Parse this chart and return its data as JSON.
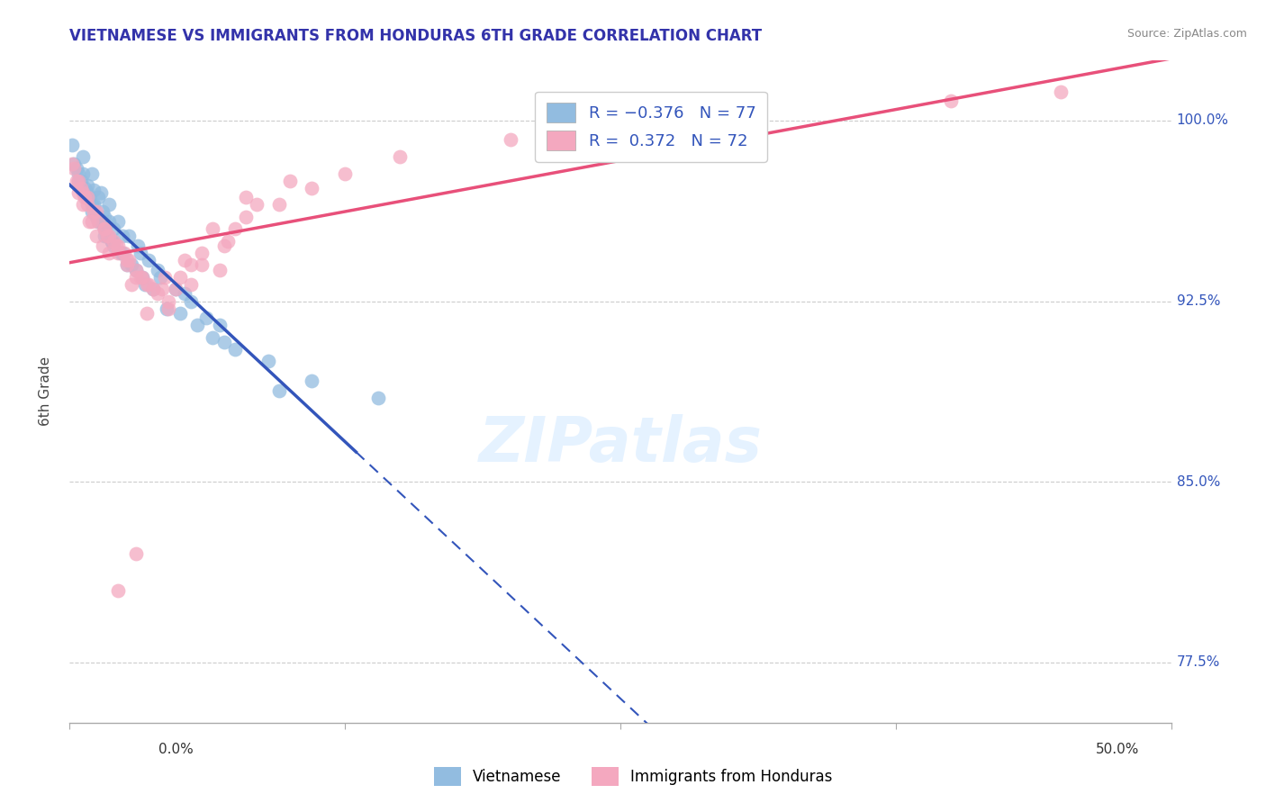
{
  "title": "VIETNAMESE VS IMMIGRANTS FROM HONDURAS 6TH GRADE CORRELATION CHART",
  "source": "Source: ZipAtlas.com",
  "ylabel": "6th Grade",
  "xlim": [
    0.0,
    50.0
  ],
  "ylim": [
    75.0,
    102.5
  ],
  "yticks": [
    77.5,
    85.0,
    92.5,
    100.0
  ],
  "ytick_labels": [
    "77.5%",
    "85.0%",
    "92.5%",
    "100.0%"
  ],
  "blue_color": "#92bce0",
  "pink_color": "#f4a8bf",
  "blue_line_color": "#3355bb",
  "pink_line_color": "#e8507a",
  "blue_scatter_x": [
    0.4,
    0.5,
    0.6,
    0.7,
    0.8,
    0.9,
    1.0,
    1.1,
    1.2,
    1.3,
    1.4,
    1.5,
    1.6,
    1.7,
    1.8,
    1.9,
    2.0,
    0.3,
    0.5,
    0.8,
    1.0,
    1.3,
    1.6,
    2.0,
    2.3,
    2.6,
    3.0,
    3.4,
    0.2,
    0.4,
    0.7,
    1.1,
    1.5,
    1.9,
    2.4,
    2.8,
    3.3,
    3.8,
    4.4,
    5.0,
    5.8,
    6.5,
    7.5,
    9.0,
    11.0,
    14.0,
    0.1,
    0.6,
    1.0,
    1.4,
    1.8,
    2.2,
    2.7,
    3.1,
    3.6,
    4.1,
    4.8,
    5.5,
    6.2,
    7.0,
    9.5,
    0.9,
    1.6,
    2.4,
    3.2,
    4.0,
    5.2,
    6.8
  ],
  "blue_scatter_y": [
    97.5,
    97.2,
    97.8,
    97.0,
    97.3,
    96.8,
    96.5,
    97.1,
    96.0,
    96.8,
    95.8,
    96.2,
    95.5,
    95.2,
    95.8,
    95.0,
    95.5,
    98.0,
    97.5,
    97.0,
    96.2,
    95.8,
    95.2,
    94.8,
    94.5,
    94.0,
    93.8,
    93.2,
    98.2,
    97.8,
    97.2,
    96.5,
    95.8,
    95.0,
    94.5,
    94.0,
    93.5,
    93.0,
    92.2,
    92.0,
    91.5,
    91.0,
    90.5,
    90.0,
    89.2,
    88.5,
    99.0,
    98.5,
    97.8,
    97.0,
    96.5,
    95.8,
    95.2,
    94.8,
    94.2,
    93.5,
    93.0,
    92.5,
    91.8,
    90.8,
    88.8,
    96.8,
    96.0,
    95.2,
    94.5,
    93.8,
    92.8,
    91.5
  ],
  "pink_scatter_x": [
    0.4,
    0.6,
    0.9,
    1.2,
    1.5,
    1.8,
    2.2,
    2.6,
    3.0,
    3.5,
    4.2,
    5.0,
    6.0,
    7.2,
    8.5,
    0.3,
    0.7,
    1.1,
    1.6,
    2.0,
    2.5,
    3.0,
    3.6,
    4.3,
    5.2,
    6.5,
    8.0,
    10.0,
    0.2,
    0.5,
    0.8,
    1.3,
    1.7,
    2.2,
    2.7,
    3.2,
    3.8,
    4.5,
    5.5,
    7.0,
    9.5,
    12.5,
    15.0,
    20.0,
    25.0,
    30.0,
    40.0,
    45.0,
    0.1,
    0.4,
    0.8,
    1.2,
    1.6,
    2.1,
    2.6,
    3.3,
    4.0,
    4.8,
    6.0,
    8.0,
    11.0,
    3.5,
    5.5,
    7.5,
    0.6,
    1.0,
    1.8,
    2.8,
    4.5,
    6.8,
    2.2,
    3.0
  ],
  "pink_scatter_y": [
    97.0,
    96.5,
    95.8,
    95.2,
    94.8,
    95.2,
    94.5,
    94.0,
    93.5,
    93.2,
    93.0,
    93.5,
    94.0,
    95.0,
    96.5,
    97.5,
    96.8,
    96.2,
    95.5,
    95.0,
    94.5,
    93.8,
    93.2,
    93.5,
    94.2,
    95.5,
    96.8,
    97.5,
    98.0,
    97.2,
    96.5,
    95.8,
    95.2,
    94.8,
    94.2,
    93.5,
    93.0,
    92.5,
    93.2,
    94.8,
    96.5,
    97.8,
    98.5,
    99.2,
    99.8,
    100.2,
    100.8,
    101.2,
    98.2,
    97.5,
    96.8,
    96.2,
    95.5,
    94.8,
    94.2,
    93.5,
    92.8,
    93.0,
    94.5,
    96.0,
    97.2,
    92.0,
    94.0,
    95.5,
    97.0,
    95.8,
    94.5,
    93.2,
    92.2,
    93.8,
    80.5,
    82.0
  ]
}
